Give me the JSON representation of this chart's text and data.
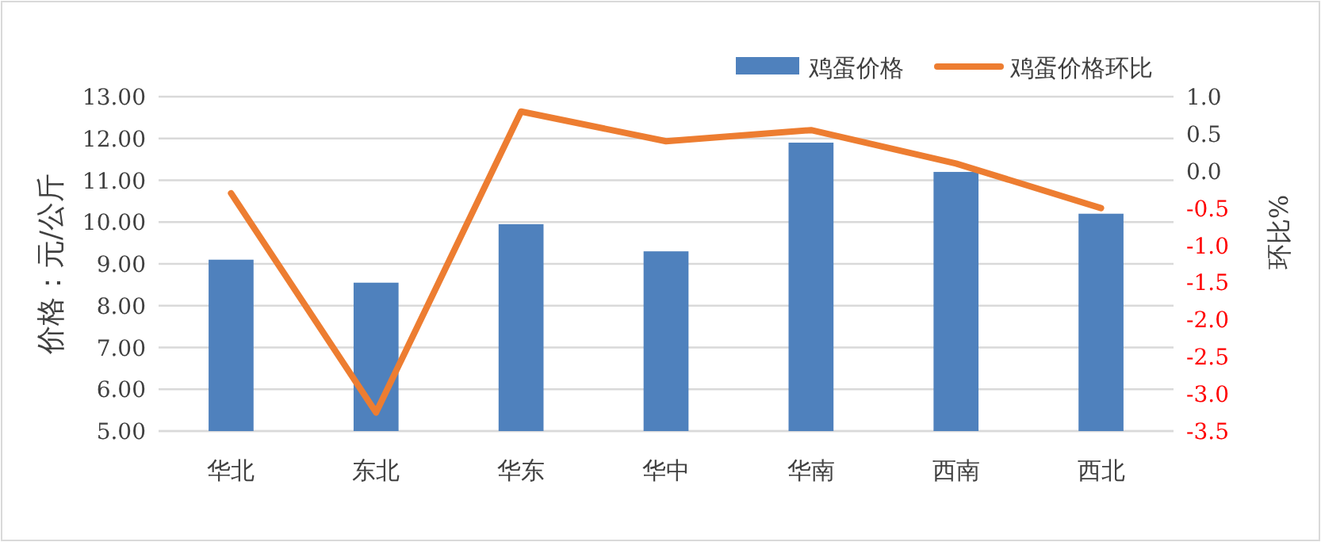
{
  "chart_data": {
    "type": "bar",
    "ylabel": "价格：元/公斤",
    "y2label": "环比%",
    "categories": [
      "华北",
      "东北",
      "华东",
      "华中",
      "华南",
      "西南",
      "西北"
    ],
    "series": [
      {
        "name": "鸡蛋价格",
        "color": "#4f81bd",
        "values": [
          9.1,
          8.55,
          9.95,
          9.3,
          11.9,
          11.2,
          10.2
        ]
      },
      {
        "name": "鸡蛋价格环比",
        "type": "line",
        "axis": "y2",
        "color": "#ed7d31",
        "values": [
          -0.3,
          -3.25,
          0.8,
          0.4,
          0.55,
          0.1,
          -0.5
        ]
      }
    ],
    "ylim": [
      5,
      13
    ],
    "yticks": [
      {
        "value": 5,
        "label": "5.00"
      },
      {
        "value": 6,
        "label": "6.00"
      },
      {
        "value": 7,
        "label": "7.00"
      },
      {
        "value": 8,
        "label": "8.00"
      },
      {
        "value": 9,
        "label": "9.00"
      },
      {
        "value": 10,
        "label": "10.00"
      },
      {
        "value": 11,
        "label": "11.00"
      },
      {
        "value": 12,
        "label": "12.00"
      },
      {
        "value": 13,
        "label": "13.00"
      }
    ],
    "y2lim": [
      -3.5,
      1
    ],
    "y2ticks": [
      {
        "value": 1,
        "label": "1.0"
      },
      {
        "value": 0.5,
        "label": "0.5"
      },
      {
        "value": 0,
        "label": "0.0"
      },
      {
        "value": -0.5,
        "label": "-0.5"
      },
      {
        "value": -1,
        "label": "-1.0"
      },
      {
        "value": -1.5,
        "label": "-1.5"
      },
      {
        "value": -2,
        "label": "-2.0"
      },
      {
        "value": -2.5,
        "label": "-2.5"
      },
      {
        "value": -3,
        "label": "-3.0"
      },
      {
        "value": -3.5,
        "label": "-3.5"
      }
    ],
    "grid": "y",
    "legend": "top right",
    "marker": "none",
    "line_style": "solid"
  }
}
